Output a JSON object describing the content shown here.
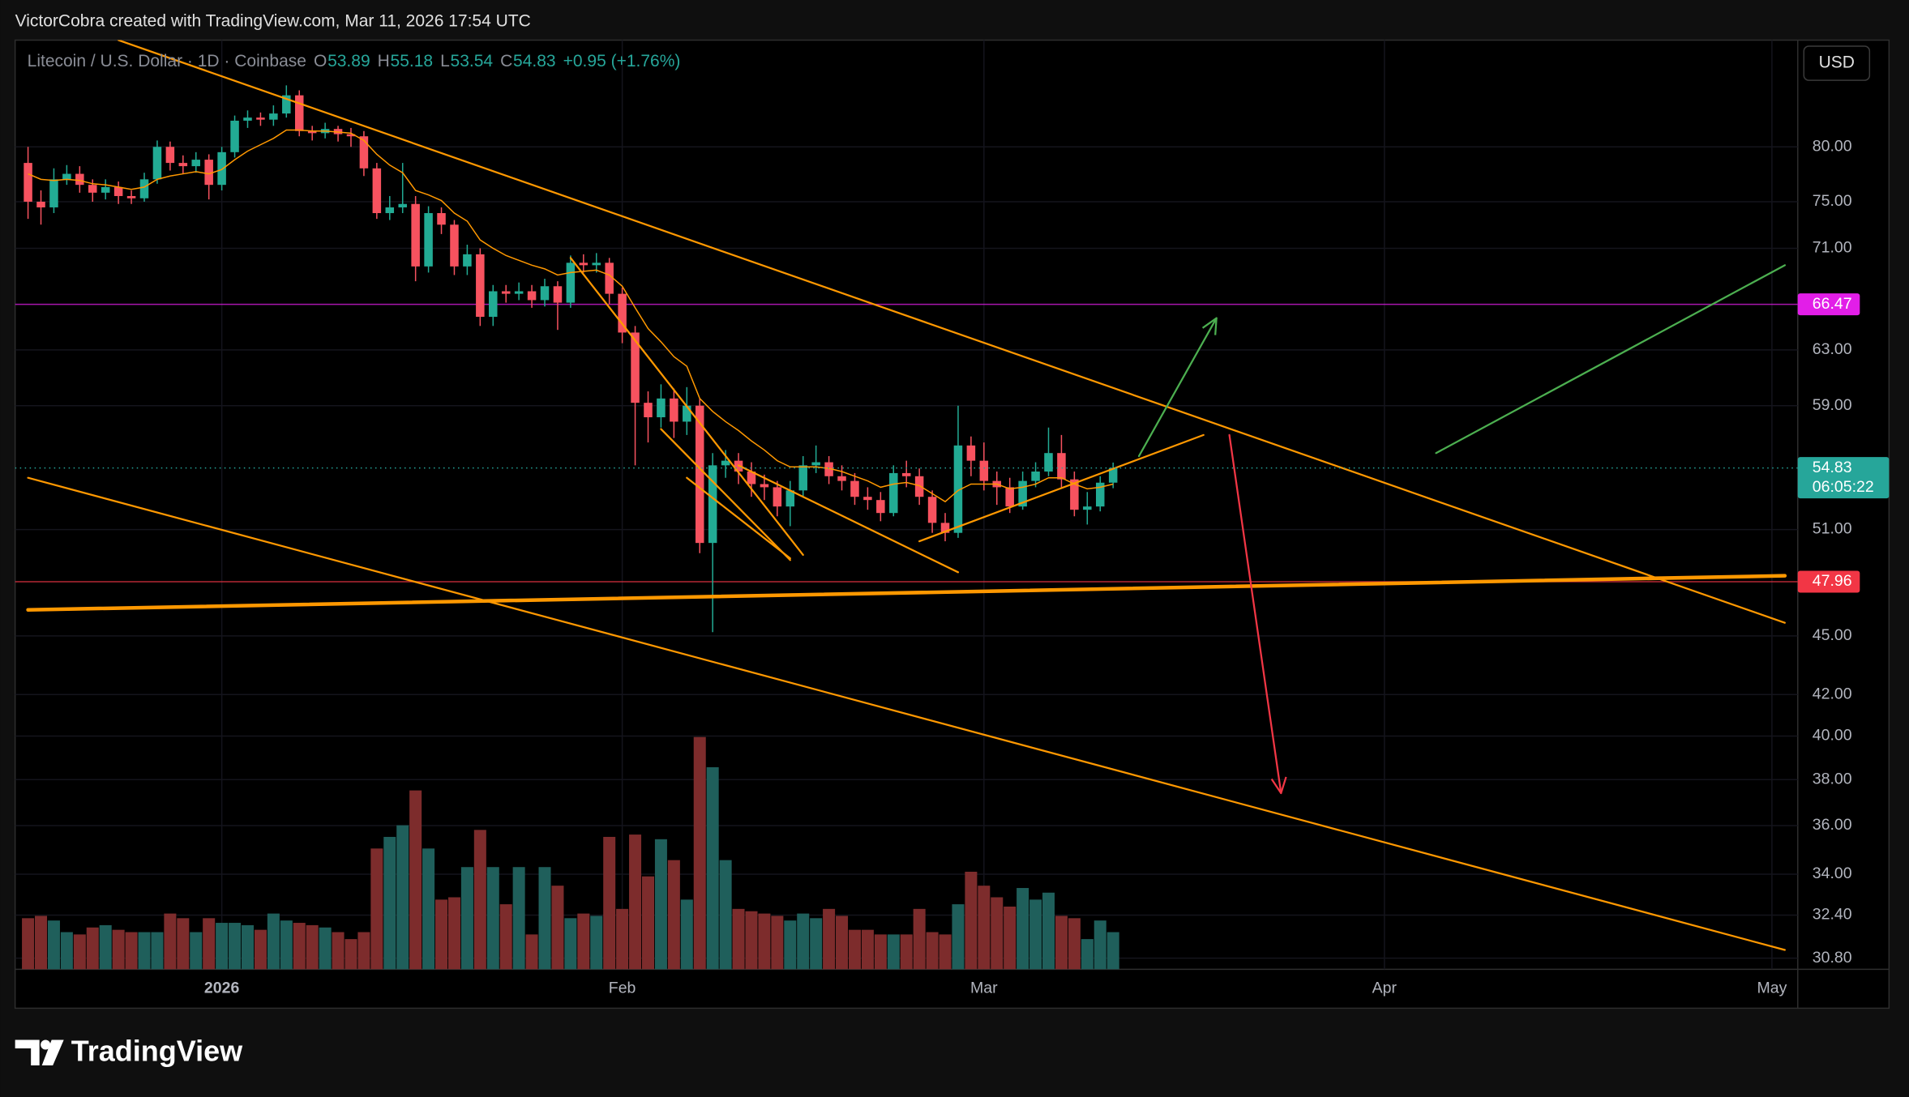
{
  "header": {
    "credit": "VictorCobra created with TradingView.com, Mar 11, 2026 17:54 UTC",
    "symbol": "Litecoin / U.S. Dollar · 1D · Coinbase",
    "open_label": "O",
    "high_label": "H",
    "low_label": "L",
    "close_label": "C",
    "change": "+0.95 (+1.76%)",
    "currency": "USD",
    "countdown": "06:05:22",
    "brand": "TradingView"
  },
  "chart_data": {
    "type": "candlestick",
    "log_scale": true,
    "grid": true,
    "up_color": "#22ab94",
    "down_color": "#f7525f",
    "x": [
      "2025-12-17",
      "2025-12-18",
      "2025-12-19",
      "2025-12-20",
      "2025-12-21",
      "2025-12-22",
      "2025-12-23",
      "2025-12-24",
      "2025-12-25",
      "2025-12-26",
      "2025-12-27",
      "2025-12-28",
      "2025-12-29",
      "2025-12-30",
      "2025-12-31",
      "2026-01-01",
      "2026-01-02",
      "2026-01-03",
      "2026-01-04",
      "2026-01-05",
      "2026-01-06",
      "2026-01-07",
      "2026-01-08",
      "2026-01-09",
      "2026-01-10",
      "2026-01-11",
      "2026-01-12",
      "2026-01-13",
      "2026-01-14",
      "2026-01-15",
      "2026-01-16",
      "2026-01-17",
      "2026-01-18",
      "2026-01-19",
      "2026-01-20",
      "2026-01-21",
      "2026-01-22",
      "2026-01-23",
      "2026-01-24",
      "2026-01-25",
      "2026-01-26",
      "2026-01-27",
      "2026-01-28",
      "2026-01-29",
      "2026-01-30",
      "2026-01-31",
      "2026-02-01",
      "2026-02-02",
      "2026-02-03",
      "2026-02-04",
      "2026-02-05",
      "2026-02-06",
      "2026-02-07",
      "2026-02-08",
      "2026-02-09",
      "2026-02-10",
      "2026-02-11",
      "2026-02-12",
      "2026-02-13",
      "2026-02-14",
      "2026-02-15",
      "2026-02-16",
      "2026-02-17",
      "2026-02-18",
      "2026-02-19",
      "2026-02-20",
      "2026-02-21",
      "2026-02-22",
      "2026-02-23",
      "2026-02-24",
      "2026-02-25",
      "2026-02-26",
      "2026-02-27",
      "2026-02-28",
      "2026-03-01",
      "2026-03-02",
      "2026-03-03",
      "2026-03-04",
      "2026-03-05",
      "2026-03-06",
      "2026-03-07",
      "2026-03-08",
      "2026-03-09",
      "2026-03-10",
      "2026-03-11"
    ],
    "open": [
      78.5,
      75,
      74.5,
      77,
      77.5,
      76.5,
      75.8,
      76.3,
      75.5,
      75.3,
      77,
      80,
      78.5,
      78.2,
      78.8,
      76.5,
      79.5,
      82.5,
      82.8,
      82.6,
      83.2,
      85,
      81.5,
      81.3,
      81.7,
      81.2,
      81,
      78,
      74,
      74.5,
      74.8,
      69.5,
      74,
      73,
      69.5,
      70.5,
      65.5,
      67.5,
      67.3,
      67.5,
      66.8,
      67.9,
      66.6,
      69.8,
      69.6,
      69.8,
      67.3,
      64.3,
      59.2,
      58.2,
      59.5,
      57.9,
      59,
      50.2,
      55,
      55.3,
      54.6,
      53.8,
      53.6,
      52.4,
      53.4,
      55,
      55.2,
      54.3,
      54,
      53,
      52.8,
      52,
      54.5,
      54.3,
      53,
      51.4,
      50.8,
      56.3,
      55.3,
      54,
      53.6,
      52.4,
      54,
      54.6,
      55.8,
      54.1,
      52.2,
      52.4,
      53.89
    ],
    "high": [
      80,
      76,
      78,
      78.3,
      78.2,
      77,
      77,
      76.8,
      76,
      77.6,
      80.6,
      80.5,
      79.2,
      79.5,
      79.3,
      80,
      83,
      83.5,
      83.3,
      84,
      86,
      85.5,
      82,
      82.3,
      82,
      81.8,
      81.5,
      78.5,
      75.5,
      78.5,
      75.5,
      74.6,
      74.5,
      73.4,
      71.3,
      71,
      68,
      68,
      68.2,
      68,
      68.5,
      68.3,
      70.4,
      70.5,
      70.6,
      70.2,
      67.8,
      64.8,
      60,
      60.5,
      60.2,
      60.3,
      59.5,
      55.8,
      56,
      55.8,
      55.2,
      54.4,
      54,
      54,
      55.6,
      56.3,
      55.6,
      55,
      54.5,
      53.6,
      53.3,
      55,
      55.3,
      54.8,
      53.4,
      52,
      59,
      56.9,
      56.5,
      54.6,
      54.2,
      54.6,
      55.2,
      57.5,
      57,
      54.6,
      53.3,
      54.3,
      55.18
    ],
    "low": [
      73.5,
      73,
      74,
      76.5,
      75.8,
      75,
      75.2,
      74.8,
      74.8,
      75,
      76.6,
      77.8,
      77.5,
      77.6,
      75.2,
      76,
      79,
      81.8,
      82,
      82,
      82.8,
      81,
      80.6,
      80.8,
      80.5,
      80,
      77.3,
      73.5,
      73.4,
      74,
      68.3,
      69,
      72.2,
      68.8,
      68.8,
      64.8,
      64.8,
      66.6,
      66.8,
      66.2,
      66.3,
      64.5,
      66.2,
      69,
      69,
      66.5,
      63.5,
      55,
      56.5,
      57.5,
      56.8,
      57,
      49.6,
      45.2,
      54.2,
      53.8,
      53,
      52.8,
      51.8,
      51.2,
      53,
      54.5,
      53.8,
      53.4,
      52.5,
      52.2,
      51.5,
      51.8,
      53.6,
      52.5,
      50.8,
      50.3,
      50.5,
      54.3,
      53.4,
      52.5,
      52,
      52.2,
      53.6,
      54.3,
      53.6,
      51.8,
      51.3,
      52.1,
      53.54
    ],
    "close": [
      75,
      74.5,
      77,
      77.5,
      76.5,
      75.8,
      76.3,
      75.5,
      75.3,
      77,
      80,
      78.5,
      78.2,
      78.8,
      76.5,
      79.5,
      82.5,
      82.8,
      82.6,
      83.2,
      85,
      81.5,
      81.3,
      81.7,
      81.2,
      81,
      78,
      74,
      74.5,
      74.8,
      69.5,
      74,
      73,
      69.5,
      70.5,
      65.5,
      67.5,
      67.3,
      67.5,
      66.8,
      67.9,
      66.6,
      69.8,
      69.6,
      69.8,
      67.3,
      64.3,
      59.2,
      58.2,
      59.5,
      57.9,
      59,
      50.2,
      55,
      55.3,
      54.6,
      53.8,
      53.6,
      52.4,
      53.4,
      55,
      55.2,
      54.3,
      54,
      53,
      52.8,
      52,
      54.5,
      54.3,
      53,
      51.4,
      50.8,
      56.3,
      55.3,
      54,
      53.6,
      52.4,
      54,
      54.6,
      55.8,
      54.1,
      52.2,
      52.4,
      53.89,
      54.83
    ],
    "ma": {
      "color": "#ff9800",
      "values": [
        77.5,
        77,
        76.9,
        77,
        76.9,
        76.6,
        76.5,
        76.3,
        76.1,
        76.3,
        77,
        77.3,
        77.5,
        77.7,
        77.5,
        77.9,
        78.8,
        79.6,
        80.2,
        80.8,
        81.6,
        81.6,
        81.5,
        81.5,
        81.4,
        81.3,
        80.6,
        79.3,
        78.3,
        77.6,
        76,
        75.6,
        75.1,
        74,
        73.3,
        71.7,
        71,
        70.4,
        70,
        69.6,
        69.3,
        68.8,
        69,
        69.1,
        69.2,
        68.8,
        67.9,
        66.2,
        64.6,
        63.6,
        62.5,
        61.8,
        59.5,
        58.6,
        57.9,
        57.3,
        56.6,
        56,
        55.3,
        54.9,
        54.9,
        54.9,
        54.8,
        54.6,
        54.3,
        54,
        53.6,
        53.8,
        53.9,
        53.7,
        53.2,
        52.7,
        53.4,
        53.8,
        53.8,
        53.8,
        53.5,
        53.6,
        53.8,
        54.2,
        54.2,
        53.8,
        53.5,
        53.6,
        53.8
      ]
    },
    "volume": {
      "up_color": "#1f5f5b",
      "down_color": "#7d2c2c",
      "values": [
        22,
        23,
        21,
        16,
        15,
        18,
        19,
        17,
        16,
        16,
        16,
        24,
        22,
        16,
        22,
        20,
        20,
        19,
        17,
        24,
        21,
        20,
        19,
        18,
        16,
        13,
        16,
        52,
        57,
        62,
        77,
        52,
        30,
        31,
        44,
        60,
        44,
        28,
        44,
        15,
        44,
        36,
        22,
        24,
        23,
        57,
        26,
        58,
        40,
        56,
        47,
        30,
        100,
        87,
        47,
        26,
        25,
        24,
        23,
        21,
        24,
        22,
        26,
        23,
        17,
        17,
        15,
        15,
        15,
        26,
        16,
        15,
        28,
        42,
        36,
        31,
        27,
        35,
        30,
        33,
        23,
        22,
        13,
        21,
        16
      ]
    },
    "xlim": [
      "2025-12-16",
      "2026-05-03"
    ],
    "xticks": [
      {
        "value": "2026-01-01",
        "label": "2026"
      },
      {
        "value": "2026-02-01",
        "label": "Feb"
      },
      {
        "value": "2026-03-01",
        "label": "Mar"
      },
      {
        "value": "2026-04-01",
        "label": "Apr"
      },
      {
        "value": "2026-05-01",
        "label": "May"
      }
    ],
    "ylim": [
      30.4,
      90.7
    ],
    "yticks": [
      {
        "value": 80,
        "label": "80.00"
      },
      {
        "value": 75,
        "label": "75.00"
      },
      {
        "value": 71,
        "label": "71.00"
      },
      {
        "value": 63,
        "label": "63.00"
      },
      {
        "value": 59,
        "label": "59.00"
      },
      {
        "value": 51,
        "label": "51.00"
      },
      {
        "value": 45,
        "label": "45.00"
      },
      {
        "value": 42,
        "label": "42.00"
      },
      {
        "value": 40,
        "label": "40.00"
      },
      {
        "value": 38,
        "label": "38.00"
      },
      {
        "value": 36,
        "label": "36.00"
      },
      {
        "value": 34,
        "label": "34.00"
      },
      {
        "value": 32.4,
        "label": "32.40"
      },
      {
        "value": 30.8,
        "label": "30.80"
      }
    ],
    "hlines": [
      {
        "value": 66.47,
        "color": "#e21ee8"
      },
      {
        "value": 47.96,
        "color": "#f23645"
      }
    ],
    "price_line_color": "#26a69a",
    "drawings": [
      {
        "x": [
          "2025-12-24",
          "2026-05-02"
        ],
        "y": [
          90.7,
          45.7
        ],
        "color": "#ff9800",
        "width": 1.5,
        "arrow": false
      },
      {
        "x": [
          "2025-12-17",
          "2026-05-02"
        ],
        "y": [
          54.2,
          31.1
        ],
        "color": "#ff9800",
        "width": 1.5,
        "arrow": false
      },
      {
        "x": [
          "2025-12-17",
          "2026-05-02"
        ],
        "y": [
          46.4,
          48.3
        ],
        "color": "#ff9800",
        "width": 3,
        "arrow": false
      },
      {
        "x": [
          "2026-01-28",
          "2026-02-15"
        ],
        "y": [
          70.2,
          49.5
        ],
        "color": "#ff9800",
        "width": 1.5,
        "arrow": false
      },
      {
        "x": [
          "2026-02-04",
          "2026-02-14"
        ],
        "y": [
          57.4,
          49.2
        ],
        "color": "#ff9800",
        "width": 1.5,
        "arrow": false
      },
      {
        "x": [
          "2026-02-06",
          "2026-02-14"
        ],
        "y": [
          54.2,
          49.3
        ],
        "color": "#ff9800",
        "width": 1.5,
        "arrow": false
      },
      {
        "x": [
          "2026-02-10",
          "2026-02-27"
        ],
        "y": [
          55.0,
          48.5
        ],
        "color": "#ff9800",
        "width": 1.5,
        "arrow": false
      },
      {
        "x": [
          "2026-02-24",
          "2026-03-18"
        ],
        "y": [
          50.3,
          57.0
        ],
        "color": "#ff9800",
        "width": 1.5,
        "arrow": false
      },
      {
        "x": [
          "2026-03-13",
          "2026-03-19"
        ],
        "y": [
          55.6,
          65.4
        ],
        "color": "#4caf50",
        "width": 1.5,
        "arrow": true
      },
      {
        "x": [
          "2026-03-20",
          "2026-03-24"
        ],
        "y": [
          57.0,
          37.4
        ],
        "color": "#f23645",
        "width": 1.5,
        "arrow": true
      },
      {
        "x": [
          "2026-04-05",
          "2026-05-02"
        ],
        "y": [
          55.8,
          69.6
        ],
        "color": "#4caf50",
        "width": 1.5,
        "arrow": false
      }
    ]
  }
}
